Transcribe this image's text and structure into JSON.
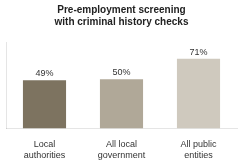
{
  "chart_data": {
    "type": "bar",
    "title": "Pre-employment screening\nwith criminal history checks",
    "categories": [
      "Local\nauthorities",
      "All local\ngovernment",
      "All public\nentities"
    ],
    "values": [
      49,
      50,
      71
    ],
    "value_labels": [
      "49%",
      "50%",
      "71%"
    ],
    "colors": [
      "#7d7360",
      "#b0a898",
      "#cfc9be"
    ],
    "ylim": [
      0,
      88
    ],
    "grid": false,
    "data_labels": true,
    "tick_labels": "x"
  }
}
